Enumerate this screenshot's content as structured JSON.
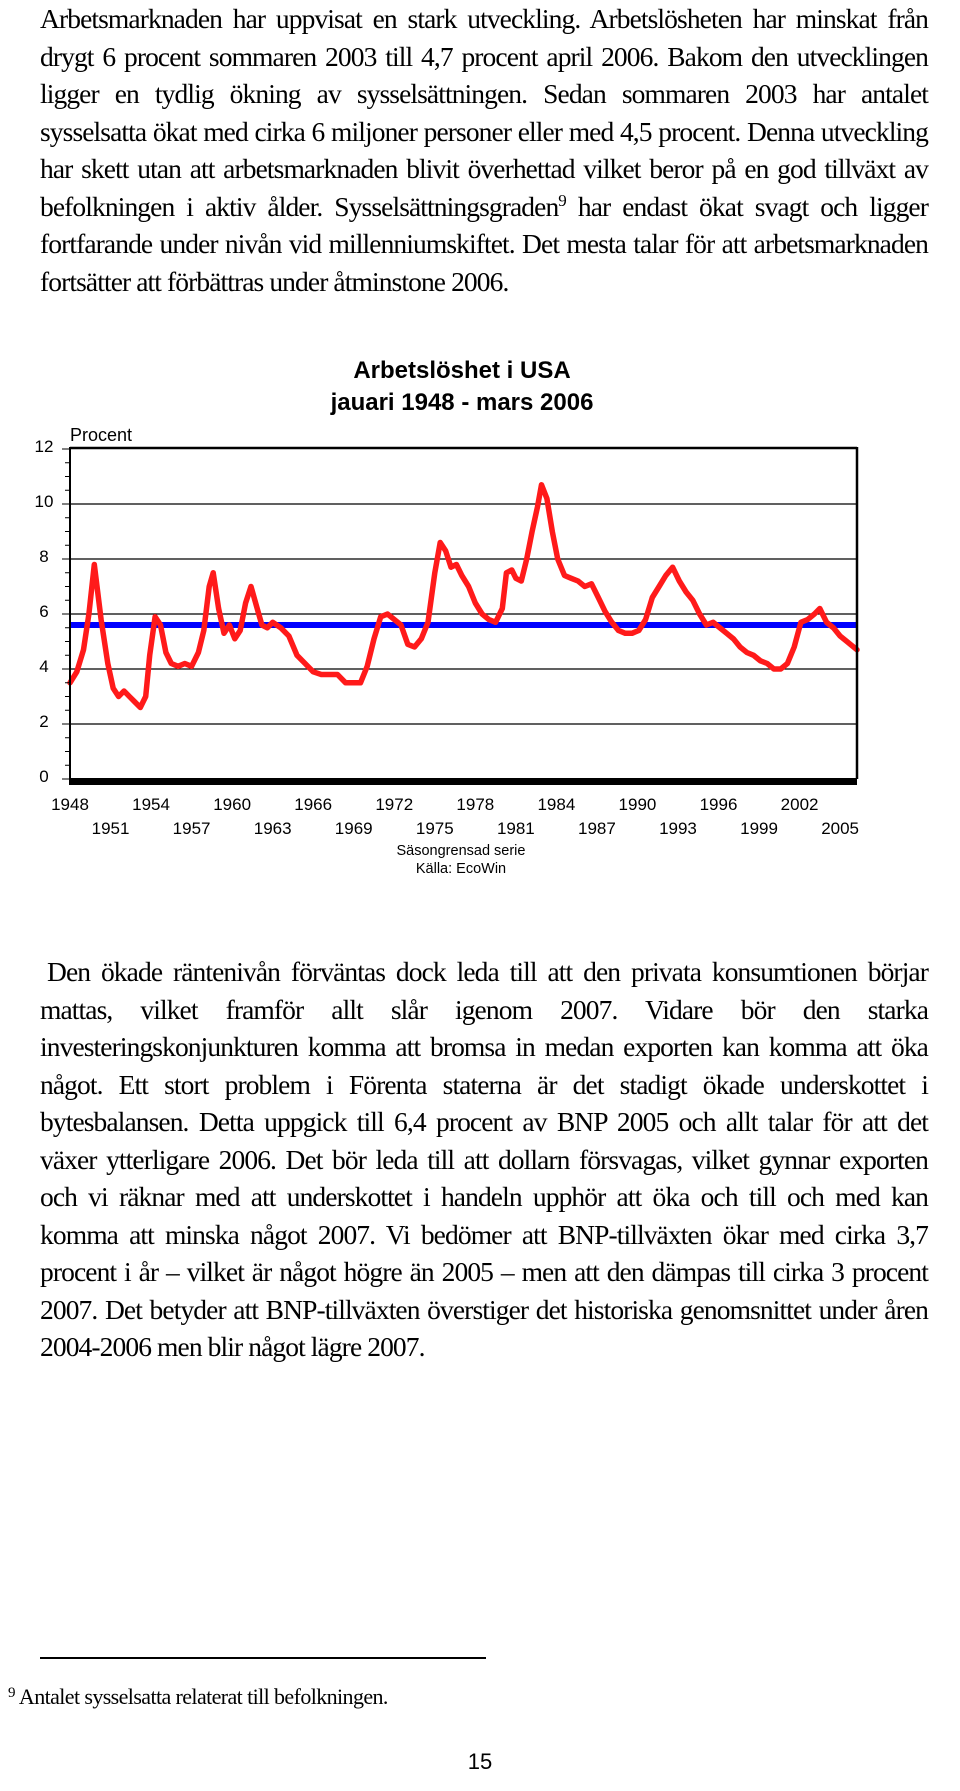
{
  "body": {
    "paragraph1_a": "Arbetsmarknaden har uppvisat en stark utveckling. Arbetslösheten har minskat från drygt 6 procent sommaren 2003 till 4,7 procent april 2006. Bakom den utvecklingen ligger en tydlig ökning av sysselsättningen. Sedan sommaren 2003 har antalet sysselsatta ökat med cirka 6 miljoner personer eller med 4,5 procent. Denna utveckling har skett utan att arbetsmarknaden blivit överhettad vilket beror på en god tillväxt av befolkningen i aktiv ålder. Sysselsättningsgraden",
    "footnote_ref": "9",
    "paragraph1_b": " har endast ökat svagt och ligger fortfarande under nivån vid millenniumskiftet. Det mesta talar för att arbetsmarknaden fortsätter att förbättras under åtminstone 2006.",
    "paragraph2": "Den ökade räntenivån förväntas dock leda till att den privata konsumtionen börjar mattas, vilket framför allt slår igenom 2007. Vidare bör den starka investeringskonjunkturen komma att bromsa in medan exporten kan komma att öka något. Ett stort problem i Förenta staterna är det stadigt ökade underskottet i bytesbalansen. Detta uppgick till 6,4 procent av BNP 2005 och allt talar för att det växer ytterligare 2006. Det bör leda till att dollarn försvagas, vilket gynnar exporten och vi räknar med att underskottet i handeln upphör att öka och till och med kan komma att minska något 2007. Vi bedömer att BNP-tillväxten ökar med cirka 3,7 procent i år – vilket är något högre än 2005 – men att den dämpas till cirka 3 procent 2007. Det betyder att BNP-tillväxten överstiger det historiska genomsnittet under åren 2004-2006 men blir något lägre 2007."
  },
  "footnote": {
    "mark": "9",
    "text": "Antalet sysselsatta relaterat till befolkningen."
  },
  "page_number": "15",
  "chart_data": {
    "type": "line",
    "title_line1": "Arbetslöshet i USA",
    "title_line2": "jauari 1948 - mars 2006",
    "ylabel": "Procent",
    "ylim": [
      0,
      12
    ],
    "yticks": [
      "0",
      "2",
      "4",
      "6",
      "8",
      "10",
      "12"
    ],
    "xlim": [
      1948,
      2006.25
    ],
    "xticks_upper": [
      "1948",
      "1954",
      "1960",
      "1966",
      "1972",
      "1978",
      "1984",
      "1990",
      "1996",
      "2002"
    ],
    "xticks_lower": [
      "1951",
      "1957",
      "1963",
      "1969",
      "1975",
      "1981",
      "1987",
      "1993",
      "1999",
      "2005"
    ],
    "source_line1": "Säsongrensad serie",
    "source_line2": "Källa: EcoWin",
    "grid": true,
    "colors": {
      "series": "#ff1a1a",
      "average": "#0000ff",
      "frame": "#000000"
    },
    "average_value": 5.6,
    "series": [
      {
        "x": [
          1948.0,
          1948.5,
          1949.0,
          1949.4,
          1949.8,
          1950.3,
          1950.8,
          1951.2,
          1951.6,
          1952.0,
          1952.4,
          1952.8,
          1953.2,
          1953.6,
          1953.9,
          1954.3,
          1954.7,
          1955.1,
          1955.5,
          1956.0,
          1956.5,
          1957.0,
          1957.5,
          1957.9,
          1958.3,
          1958.6,
          1959.0,
          1959.4,
          1959.8,
          1960.2,
          1960.6,
          1961.0,
          1961.4,
          1961.8,
          1962.2,
          1962.6,
          1963.0,
          1963.6,
          1964.2,
          1964.8,
          1965.4,
          1966.0,
          1966.6,
          1967.2,
          1967.8,
          1968.4,
          1969.0,
          1969.5,
          1970.0,
          1970.5,
          1971.0,
          1971.5,
          1972.0,
          1972.5,
          1973.0,
          1973.5,
          1974.0,
          1974.5,
          1975.0,
          1975.4,
          1975.8,
          1976.2,
          1976.6,
          1977.0,
          1977.5,
          1978.0,
          1978.5,
          1979.0,
          1979.5,
          1980.0,
          1980.3,
          1980.7,
          1981.0,
          1981.4,
          1981.8,
          1982.2,
          1982.6,
          1982.9,
          1983.3,
          1983.7,
          1984.1,
          1984.6,
          1985.1,
          1985.6,
          1986.1,
          1986.6,
          1987.1,
          1987.6,
          1988.1,
          1988.6,
          1989.1,
          1989.6,
          1990.1,
          1990.6,
          1991.1,
          1991.6,
          1992.1,
          1992.6,
          1993.1,
          1993.6,
          1994.1,
          1994.6,
          1995.1,
          1995.6,
          1996.1,
          1996.6,
          1997.1,
          1997.6,
          1998.1,
          1998.6,
          1999.1,
          1999.6,
          2000.1,
          2000.6,
          2001.1,
          2001.6,
          2002.1,
          2002.6,
          2003.1,
          2003.5,
          2004.0,
          2004.5,
          2005.0,
          2005.5,
          2006.0,
          2006.25
        ],
        "y": [
          3.5,
          3.9,
          4.7,
          6.0,
          7.8,
          5.8,
          4.2,
          3.3,
          3.0,
          3.2,
          3.0,
          2.8,
          2.6,
          3.0,
          4.5,
          5.9,
          5.6,
          4.6,
          4.2,
          4.1,
          4.2,
          4.1,
          4.6,
          5.4,
          7.0,
          7.5,
          6.2,
          5.3,
          5.6,
          5.1,
          5.4,
          6.4,
          7.0,
          6.3,
          5.6,
          5.5,
          5.7,
          5.5,
          5.2,
          4.5,
          4.2,
          3.9,
          3.8,
          3.8,
          3.8,
          3.5,
          3.5,
          3.5,
          4.1,
          5.1,
          5.9,
          6.0,
          5.8,
          5.6,
          4.9,
          4.8,
          5.1,
          5.7,
          7.5,
          8.6,
          8.3,
          7.7,
          7.8,
          7.4,
          7.0,
          6.4,
          6.0,
          5.8,
          5.7,
          6.2,
          7.5,
          7.6,
          7.3,
          7.2,
          8.0,
          9.0,
          9.9,
          10.7,
          10.2,
          9.0,
          8.0,
          7.4,
          7.3,
          7.2,
          7.0,
          7.1,
          6.6,
          6.1,
          5.7,
          5.4,
          5.3,
          5.3,
          5.4,
          5.8,
          6.6,
          7.0,
          7.4,
          7.7,
          7.2,
          6.8,
          6.5,
          6.0,
          5.6,
          5.7,
          5.5,
          5.3,
          5.1,
          4.8,
          4.6,
          4.5,
          4.3,
          4.2,
          4.0,
          4.0,
          4.2,
          4.8,
          5.7,
          5.8,
          6.0,
          6.2,
          5.7,
          5.5,
          5.2,
          5.0,
          4.8,
          4.7
        ]
      }
    ]
  }
}
